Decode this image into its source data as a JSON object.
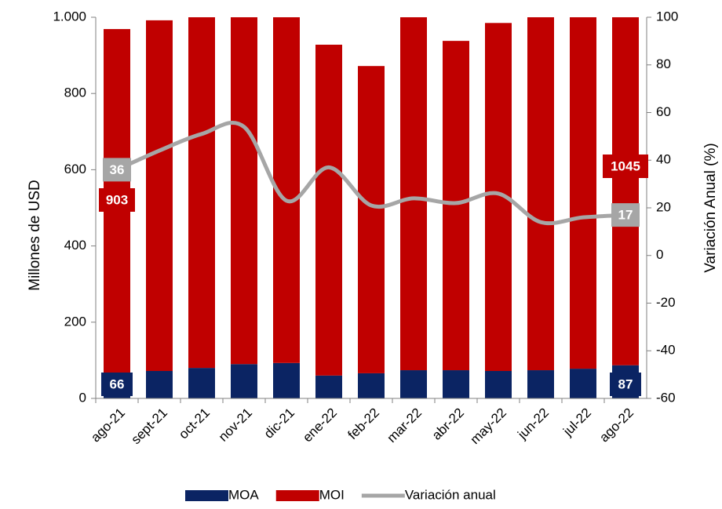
{
  "chart_data": {
    "type": "bar",
    "categories": [
      "ago-21",
      "sept-21",
      "oct-21",
      "nov-21",
      "dic-21",
      "ene-22",
      "feb-22",
      "mar-22",
      "abr-22",
      "may-22",
      "jun-22",
      "jul-22",
      "ago-22"
    ],
    "series": [
      {
        "name": "MOA",
        "color": "#0b2463",
        "values": [
          66,
          72,
          80,
          90,
          93,
          60,
          66,
          74,
          74,
          72,
          74,
          78,
          87
        ]
      },
      {
        "name": "MOI",
        "color": "#c00000",
        "values": [
          903,
          920,
          1000,
          1060,
          1030,
          868,
          806,
          950,
          864,
          913,
          1000,
          1000,
          1045
        ]
      },
      {
        "name": "Variación anual",
        "color": "#a6a6a6",
        "type": "line",
        "axis": "y2",
        "values": [
          36,
          44,
          51,
          54,
          23,
          37,
          21,
          24,
          22,
          26,
          14,
          16,
          17
        ]
      }
    ],
    "stacked": true,
    "ylabel": "Millones de USD",
    "y2label": "Variación Anual (%)",
    "ylim": [
      0,
      1000
    ],
    "yticks": [
      0,
      200,
      400,
      600,
      800,
      {
        "value": 1000,
        "label": "1.000"
      }
    ],
    "y2lim": [
      -60,
      100
    ],
    "y2ticks": [
      -60,
      -40,
      -20,
      0,
      20,
      40,
      60,
      80,
      100
    ],
    "legend": "bottom"
  }
}
